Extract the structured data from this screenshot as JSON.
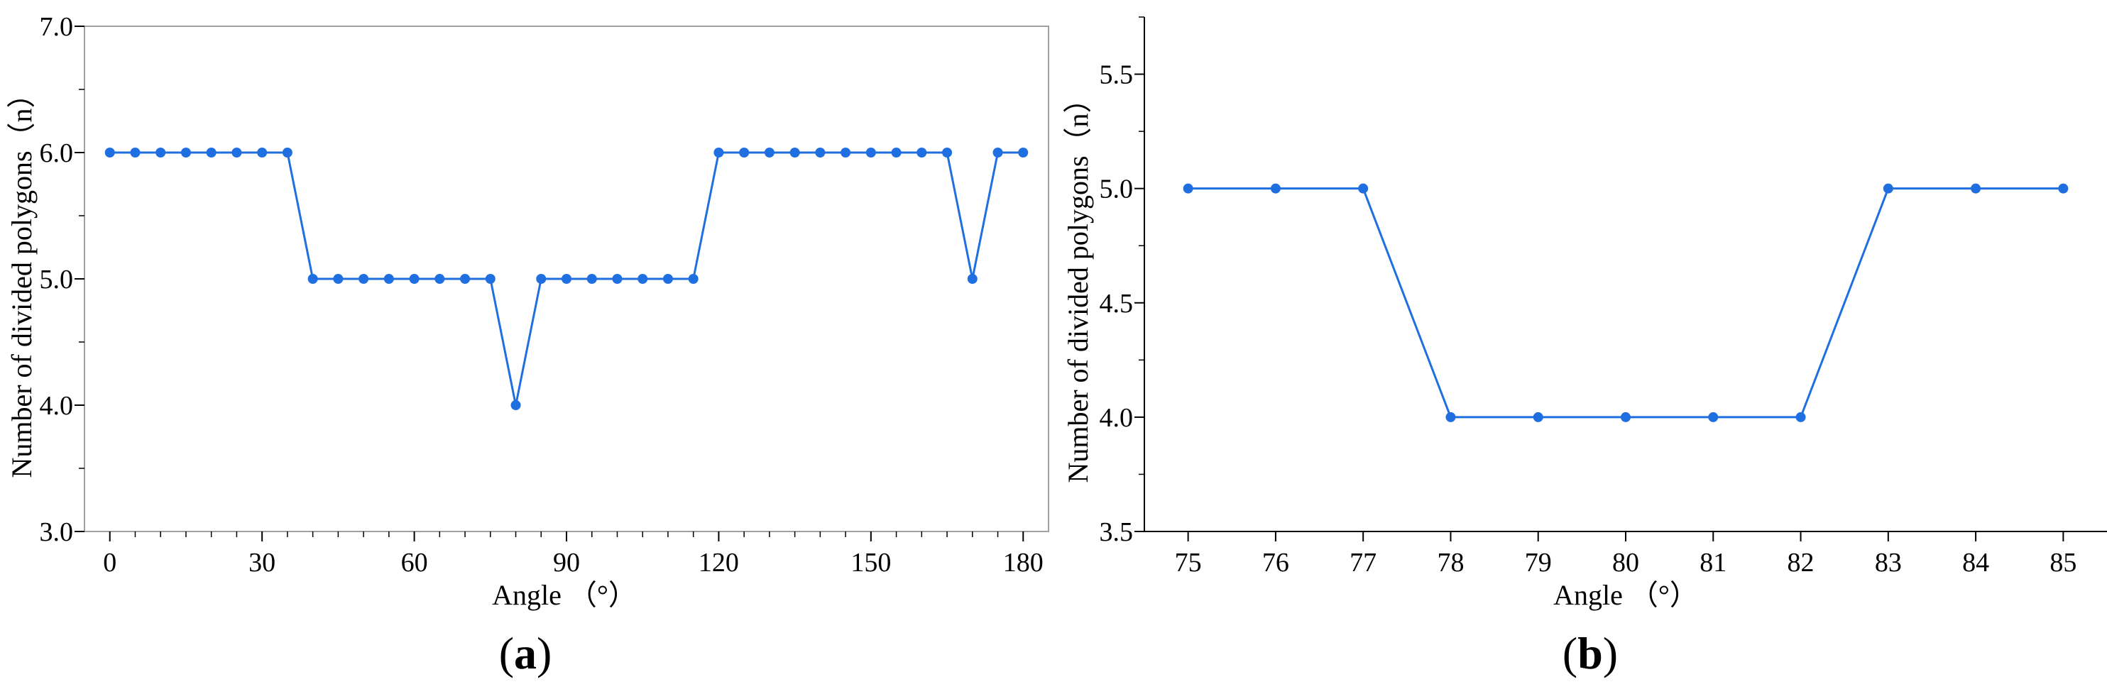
{
  "chart_data": [
    {
      "type": "line",
      "panel_label": "(a)",
      "panel_letter": "a",
      "xlabel": "Angle （°）",
      "ylabel": "Number of divided polygons（n）",
      "xlim": [
        -5,
        185
      ],
      "ylim": [
        3.0,
        7.0
      ],
      "x_ticks": [
        0,
        30,
        60,
        90,
        120,
        150,
        180
      ],
      "x_tick_labels": [
        "0",
        "30",
        "60",
        "90",
        "120",
        "150",
        "180"
      ],
      "y_ticks": [
        3.0,
        4.0,
        5.0,
        6.0,
        7.0
      ],
      "y_tick_labels": [
        "3.0",
        "4.0",
        "5.0",
        "6.0",
        "7.0"
      ],
      "series": [
        {
          "x": [
            0,
            5,
            10,
            15,
            20,
            25,
            30,
            35,
            40,
            45,
            50,
            55,
            60,
            65,
            70,
            75,
            80,
            85,
            90,
            95,
            100,
            105,
            110,
            115,
            120,
            125,
            130,
            135,
            140,
            145,
            150,
            155,
            160,
            165,
            170,
            175,
            180
          ],
          "y": [
            6,
            6,
            6,
            6,
            6,
            6,
            6,
            6,
            5,
            5,
            5,
            5,
            5,
            5,
            5,
            5,
            4,
            5,
            5,
            5,
            5,
            5,
            5,
            5,
            6,
            6,
            6,
            6,
            6,
            6,
            6,
            6,
            6,
            6,
            5,
            6,
            6
          ]
        }
      ],
      "color": "#1f6fe0"
    },
    {
      "type": "line",
      "panel_label": "(b)",
      "panel_letter": "b",
      "xlabel": "Angle （°）",
      "ylabel": "Number of divided polygons（n）",
      "xlim": [
        74.5,
        85.5
      ],
      "ylim": [
        3.5,
        5.75
      ],
      "x_ticks": [
        75,
        76,
        77,
        78,
        79,
        80,
        81,
        82,
        83,
        84,
        85
      ],
      "x_tick_labels": [
        "75",
        "76",
        "77",
        "78",
        "79",
        "80",
        "81",
        "82",
        "83",
        "84",
        "85"
      ],
      "y_ticks": [
        3.5,
        4.0,
        4.5,
        5.0,
        5.5
      ],
      "y_tick_labels": [
        "3.5",
        "4.0",
        "4.5",
        "5.0",
        "5.5"
      ],
      "series": [
        {
          "x": [
            75,
            76,
            77,
            78,
            79,
            80,
            81,
            82,
            83,
            84,
            85
          ],
          "y": [
            5,
            5,
            5,
            4,
            4,
            4,
            4,
            4,
            5,
            5,
            5
          ]
        }
      ],
      "color": "#1f6fe0"
    }
  ]
}
